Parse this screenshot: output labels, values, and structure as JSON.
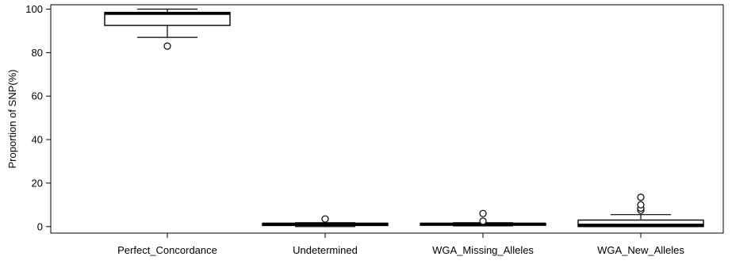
{
  "chart_data": {
    "type": "boxplot",
    "title": "",
    "xlabel": "",
    "ylabel": "Proportion of SNP(%)",
    "ylim": [
      -3,
      102
    ],
    "yticks": [
      0,
      20,
      40,
      60,
      80,
      100
    ],
    "grid": false,
    "legend": "none",
    "categories": [
      "Perfect_Concordance",
      "Undetermined",
      "WGA_Missing_Alleles",
      "WGA_New_Alleles"
    ],
    "boxes": [
      {
        "category": "Perfect_Concordance",
        "whisker_low": 87,
        "q1": 92.5,
        "median": 98,
        "q3": 98.5,
        "whisker_high": 100,
        "outliers": [
          83
        ]
      },
      {
        "category": "Undetermined",
        "whisker_low": 0,
        "q1": 0.5,
        "median": 1.2,
        "q3": 1.5,
        "whisker_high": 1.8,
        "outliers": [
          3.5
        ]
      },
      {
        "category": "WGA_Missing_Alleles",
        "whisker_low": 0.3,
        "q1": 0.6,
        "median": 1.2,
        "q3": 1.5,
        "whisker_high": 1.8,
        "outliers": [
          2.5,
          6
        ]
      },
      {
        "category": "WGA_New_Alleles",
        "whisker_low": 0,
        "q1": 0,
        "median": 0.7,
        "q3": 3,
        "whisker_high": 5.5,
        "outliers": [
          7.5,
          8.5,
          10,
          13.5
        ]
      }
    ]
  }
}
